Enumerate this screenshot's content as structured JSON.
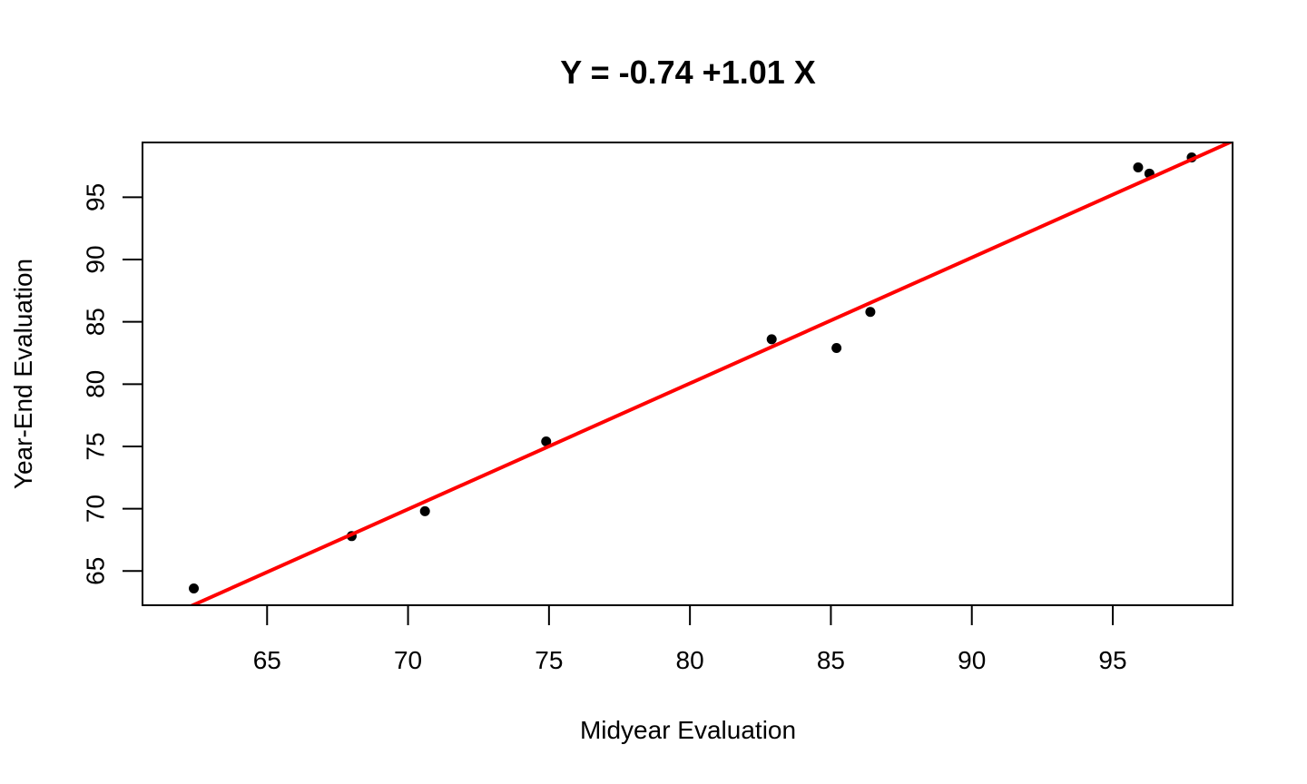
{
  "chart_data": {
    "type": "scatter",
    "title": "Y = -0.74 +1.01 X",
    "xlabel": "Midyear Evaluation",
    "ylabel": "Year-End Evaluation",
    "xlim": [
      60.58,
      99.25
    ],
    "ylim": [
      62.25,
      99.4
    ],
    "xticks": [
      65,
      70,
      75,
      80,
      85,
      90,
      95
    ],
    "yticks": [
      65,
      70,
      75,
      80,
      85,
      90,
      95
    ],
    "grid": false,
    "points": [
      {
        "x": 62.4,
        "y": 63.6
      },
      {
        "x": 68.0,
        "y": 67.8
      },
      {
        "x": 70.6,
        "y": 69.8
      },
      {
        "x": 74.9,
        "y": 75.4
      },
      {
        "x": 82.9,
        "y": 83.6
      },
      {
        "x": 85.2,
        "y": 82.9
      },
      {
        "x": 86.4,
        "y": 85.8
      },
      {
        "x": 95.9,
        "y": 97.4
      },
      {
        "x": 96.3,
        "y": 96.9
      },
      {
        "x": 97.8,
        "y": 98.2
      }
    ],
    "regression": {
      "intercept": -0.74,
      "slope": 1.01,
      "color": "#ff0000"
    },
    "point_color": "#000000"
  }
}
